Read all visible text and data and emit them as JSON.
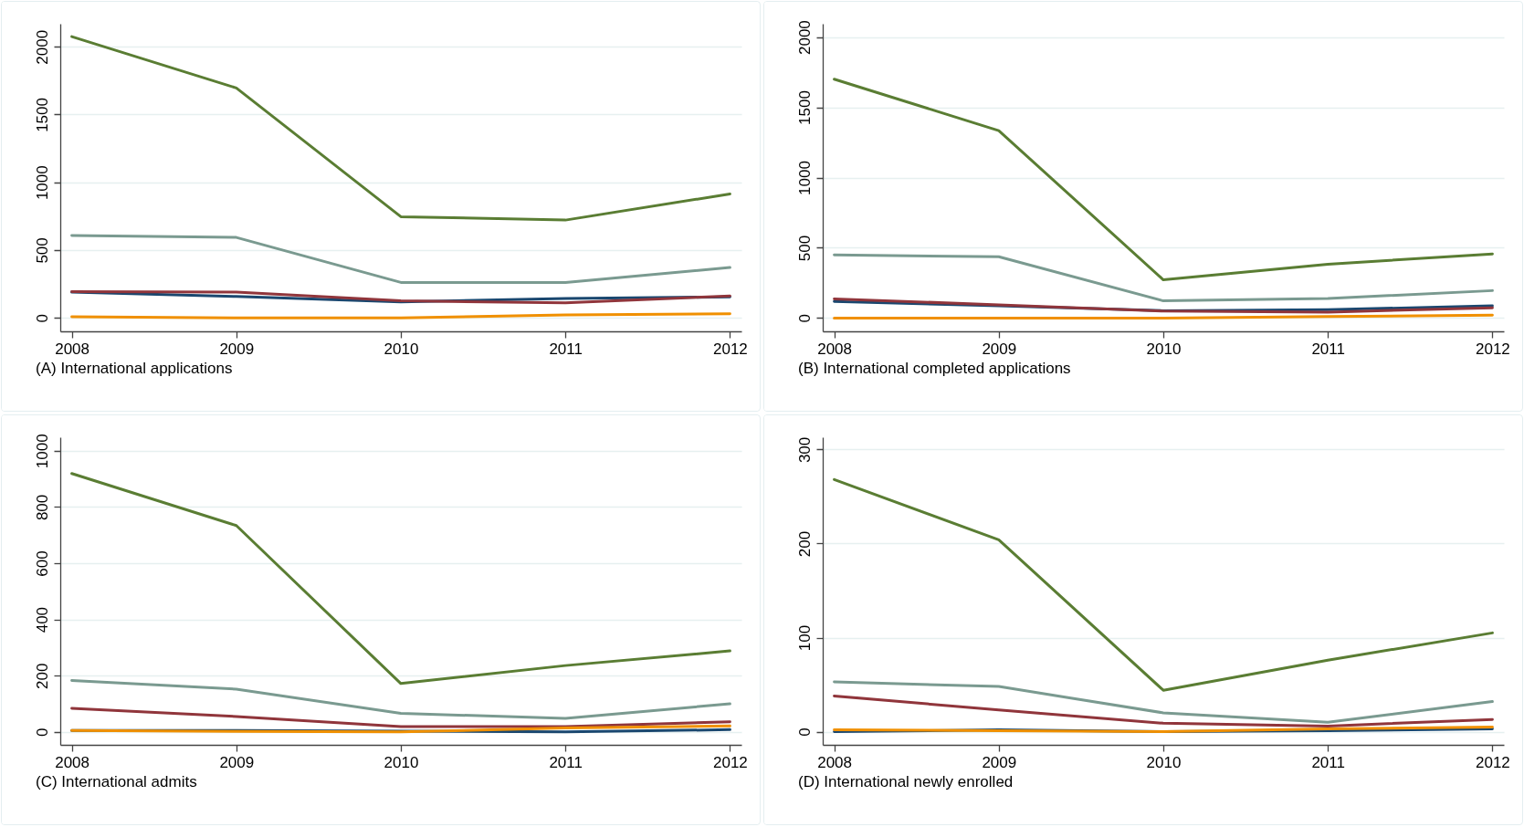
{
  "chart_data": [
    {
      "type": "line",
      "title": "(A) International applications",
      "x": [
        2008,
        2009,
        2010,
        2011,
        2012
      ],
      "xlim": [
        2007.93,
        2012.07
      ],
      "xticks": [
        2008,
        2009,
        2010,
        2011,
        2012
      ],
      "ylim": [
        -100,
        2170
      ],
      "yticks": [
        0,
        500,
        1000,
        1500,
        2000
      ],
      "grid": "y",
      "series": [
        {
          "color": "#1a476f",
          "values": [
            189,
            157,
            118,
            143,
            154
          ]
        },
        {
          "color": "#90353b",
          "values": [
            193,
            189,
            125,
            111,
            161
          ]
        },
        {
          "color": "#5a7d33",
          "values": [
            2075,
            1696,
            746,
            721,
            914
          ]
        },
        {
          "color": "#f09000",
          "values": [
            7,
            0,
            0,
            21,
            29
          ]
        },
        {
          "color": "#7a9a90",
          "values": [
            607,
            593,
            261,
            261,
            371
          ]
        }
      ]
    },
    {
      "type": "line",
      "title": "(B) International completed applications",
      "x": [
        2008,
        2009,
        2010,
        2011,
        2012
      ],
      "xlim": [
        2007.93,
        2012.07
      ],
      "xticks": [
        2008,
        2009,
        2010,
        2011,
        2012
      ],
      "ylim": [
        -95,
        2095
      ],
      "yticks": [
        0,
        500,
        1000,
        1500,
        2000
      ],
      "grid": "y",
      "series": [
        {
          "color": "#1a476f",
          "values": [
            118,
            87,
            52,
            59,
            87
          ]
        },
        {
          "color": "#90353b",
          "values": [
            136,
            94,
            49,
            42,
            73
          ]
        },
        {
          "color": "#5a7d33",
          "values": [
            1700,
            1334,
            272,
            383,
            456
          ]
        },
        {
          "color": "#f09000",
          "values": [
            0,
            0,
            0,
            10,
            21
          ]
        },
        {
          "color": "#7a9a90",
          "values": [
            449,
            436,
            122,
            139,
            195
          ]
        }
      ]
    },
    {
      "type": "line",
      "title": "(C) International admits",
      "x": [
        2008,
        2009,
        2010,
        2011,
        2012
      ],
      "xlim": [
        2007.93,
        2012.07
      ],
      "xticks": [
        2008,
        2009,
        2010,
        2011,
        2012
      ],
      "ylim": [
        -46,
        1048
      ],
      "yticks": [
        0,
        200,
        400,
        600,
        800,
        1000
      ],
      "grid": "y",
      "series": [
        {
          "color": "#1a476f",
          "values": [
            5,
            5,
            3,
            0,
            8
          ]
        },
        {
          "color": "#90353b",
          "values": [
            84,
            55,
            19,
            19,
            36
          ]
        },
        {
          "color": "#5a7d33",
          "values": [
            919,
            734,
            172,
            236,
            288
          ]
        },
        {
          "color": "#f09000",
          "values": [
            5,
            2,
            0,
            14,
            21
          ]
        },
        {
          "color": "#7a9a90",
          "values": [
            183,
            152,
            66,
            48,
            100
          ]
        }
      ]
    },
    {
      "type": "line",
      "title": "(D) International newly enrolled",
      "x": [
        2008,
        2009,
        2010,
        2011,
        2012
      ],
      "xlim": [
        2007.93,
        2012.07
      ],
      "xticks": [
        2008,
        2009,
        2010,
        2011,
        2012
      ],
      "ylim": [
        -14,
        313
      ],
      "yticks": [
        0,
        100,
        200,
        300
      ],
      "grid": "y",
      "series": [
        {
          "color": "#1a476f",
          "values": [
            0,
            2,
            0,
            1,
            3
          ]
        },
        {
          "color": "#90353b",
          "values": [
            38,
            23,
            9,
            6,
            13
          ]
        },
        {
          "color": "#5a7d33",
          "values": [
            268,
            204,
            44,
            76,
            105
          ]
        },
        {
          "color": "#f09000",
          "values": [
            2,
            1,
            0,
            3,
            5
          ]
        },
        {
          "color": "#7a9a90",
          "values": [
            53,
            48,
            20,
            10,
            32
          ]
        }
      ]
    }
  ]
}
